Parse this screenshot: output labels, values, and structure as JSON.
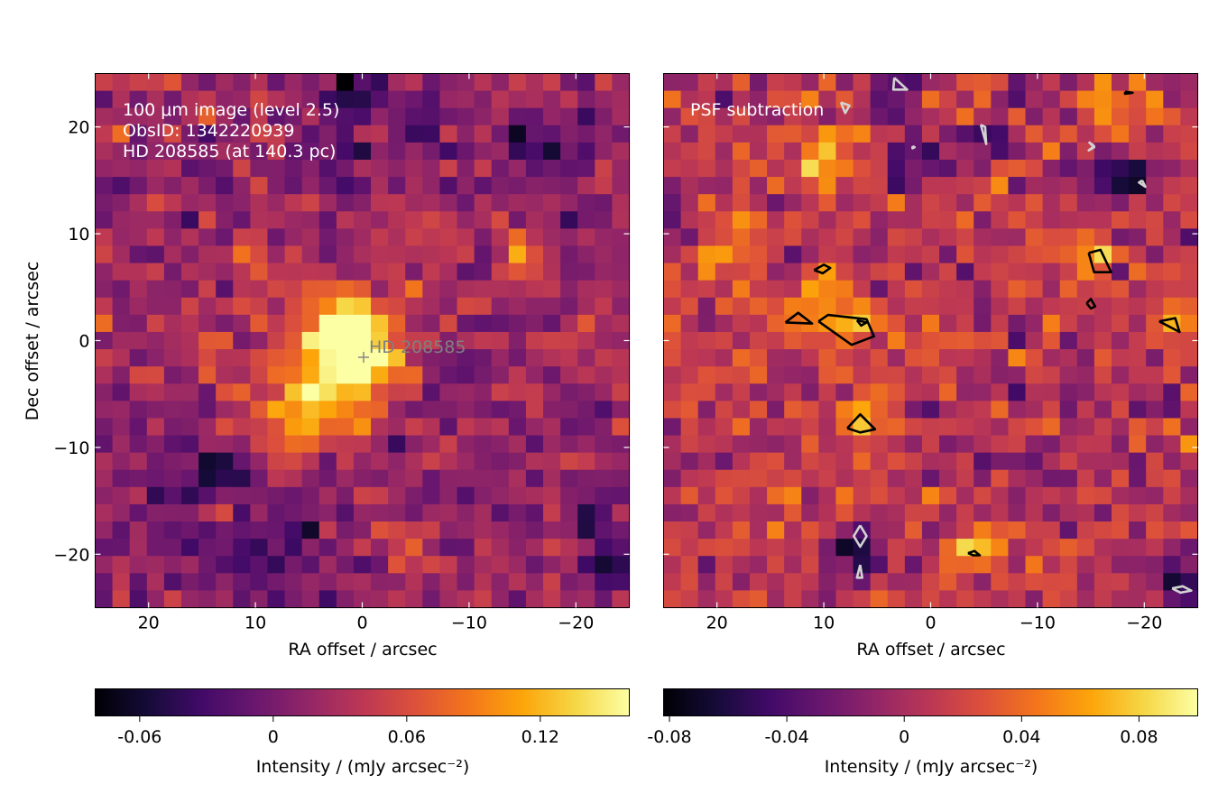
{
  "chart_data": [
    {
      "type": "heatmap",
      "title": "",
      "xlabel": "RA offset / arcsec",
      "ylabel": "Dec offset / arcsec",
      "xlim": [
        25,
        -25
      ],
      "ylim": [
        -25,
        25
      ],
      "xticks": [
        20,
        10,
        0,
        -10,
        -20
      ],
      "yticks": [
        20,
        10,
        0,
        -10,
        -20
      ],
      "xtick_labels": [
        "20",
        "10",
        "0",
        "−10",
        "−20"
      ],
      "ytick_labels": [
        "20",
        "10",
        "0",
        "−10",
        "−20"
      ],
      "annotation_lines": [
        "100 μm image (level 2.5)",
        "ObsID: 1342220939",
        "HD 208585 (at 140.3 pc)"
      ],
      "marker": {
        "label": "HD 208585",
        "x": 0,
        "y": -1.5
      },
      "colormap": "inferno",
      "grid": [
        31,
        26
      ],
      "colorbar": {
        "label": "Intensity / (mJy arcsec⁻²)",
        "range": [
          -0.08,
          0.16
        ],
        "ticks": [
          -0.06,
          0,
          0.06,
          0.12
        ],
        "tick_labels": [
          "-0.06",
          "0",
          "0.06",
          "0.12"
        ]
      },
      "blobs": [
        {
          "x": 0.5,
          "y": -1,
          "amp": 0.15,
          "sigma": 3.0
        },
        {
          "x": 3,
          "y": 2,
          "amp": 0.06,
          "sigma": 2.5
        },
        {
          "x": 3.5,
          "y": -5.5,
          "amp": 0.05,
          "sigma": 3.0
        },
        {
          "x": 7,
          "y": -5,
          "amp": 0.04,
          "sigma": 3.5
        },
        {
          "x": 6.5,
          "y": -8,
          "amp": 0.04,
          "sigma": 2.0
        },
        {
          "x": -15,
          "y": 8,
          "amp": 0.05,
          "sigma": 2.0
        },
        {
          "x": -5,
          "y": -19,
          "amp": 0.06,
          "sigma": 1.5
        },
        {
          "x": 10,
          "y": 6,
          "amp": 0.05,
          "sigma": 1.5
        },
        {
          "x": 1,
          "y": 23,
          "amp": -0.08,
          "sigma": 2.0
        },
        {
          "x": -5,
          "y": 20,
          "amp": -0.06,
          "sigma": 1.5
        },
        {
          "x": 2,
          "y": 17,
          "amp": -0.05,
          "sigma": 2.0
        },
        {
          "x": -16,
          "y": 18,
          "amp": -0.05,
          "sigma": 2.0
        },
        {
          "x": -19,
          "y": 15,
          "amp": -0.04,
          "sigma": 2.0
        },
        {
          "x": -22,
          "y": 21,
          "amp": -0.04,
          "sigma": 1.5
        },
        {
          "x": 6,
          "y": -18,
          "amp": -0.07,
          "sigma": 1.5
        },
        {
          "x": 13,
          "y": -12,
          "amp": -0.04,
          "sigma": 2.0
        },
        {
          "x": 10,
          "y": -21,
          "amp": -0.04,
          "sigma": 3.0
        },
        {
          "x": -23,
          "y": -22,
          "amp": -0.06,
          "sigma": 1.5
        },
        {
          "x": -21,
          "y": -17,
          "amp": -0.05,
          "sigma": 2.0
        },
        {
          "x": 24,
          "y": 13,
          "amp": -0.04,
          "sigma": 1.5
        },
        {
          "x": 18,
          "y": -16,
          "amp": -0.03,
          "sigma": 4.0
        }
      ],
      "base": 0.02,
      "noise": 0.02,
      "seed": 7
    },
    {
      "type": "heatmap",
      "title": "",
      "xlabel": "RA offset / arcsec",
      "ylabel": "",
      "xlim": [
        25,
        -25
      ],
      "ylim": [
        -25,
        25
      ],
      "xticks": [
        20,
        10,
        0,
        -10,
        -20
      ],
      "yticks": [
        20,
        10,
        0,
        -10,
        -20
      ],
      "xtick_labels": [
        "20",
        "10",
        "0",
        "−10",
        "−20"
      ],
      "ytick_labels": [],
      "annotation_lines": [
        "PSF subtraction"
      ],
      "colormap": "inferno",
      "grid": [
        31,
        26
      ],
      "colorbar": {
        "label": "Intensity / (mJy arcsec⁻²)",
        "range": [
          -0.082,
          0.1
        ],
        "ticks": [
          -0.08,
          -0.04,
          0,
          0.04,
          0.08
        ],
        "tick_labels": [
          "-0.08",
          "-0.04",
          "0",
          "0.04",
          "0.08"
        ]
      },
      "blobs": [
        {
          "x": 6.5,
          "y": 1.5,
          "amp": 0.05,
          "sigma": 2.0
        },
        {
          "x": 6.5,
          "y": -7.5,
          "amp": 0.05,
          "sigma": 1.5
        },
        {
          "x": -16,
          "y": 8,
          "amp": 0.05,
          "sigma": 1.5
        },
        {
          "x": -22.5,
          "y": 1.5,
          "amp": 0.05,
          "sigma": 1.5
        },
        {
          "x": 12,
          "y": 2,
          "amp": 0.04,
          "sigma": 2.0
        },
        {
          "x": 10,
          "y": 6,
          "amp": 0.03,
          "sigma": 1.5
        },
        {
          "x": -4,
          "y": -19.5,
          "amp": 0.06,
          "sigma": 1.5
        },
        {
          "x": 10,
          "y": 18,
          "amp": 0.04,
          "sigma": 2.0
        },
        {
          "x": 19,
          "y": 8,
          "amp": 0.04,
          "sigma": 2.0
        },
        {
          "x": -17,
          "y": 23,
          "amp": 0.04,
          "sigma": 2.0
        },
        {
          "x": 24,
          "y": 3,
          "amp": 0.03,
          "sigma": 2.0
        },
        {
          "x": 6.5,
          "y": -19.5,
          "amp": -0.08,
          "sigma": 1.5
        },
        {
          "x": 3,
          "y": 23,
          "amp": -0.06,
          "sigma": 1.5
        },
        {
          "x": 1.5,
          "y": 17,
          "amp": -0.05,
          "sigma": 2.0
        },
        {
          "x": -5,
          "y": 19,
          "amp": -0.05,
          "sigma": 1.5
        },
        {
          "x": -19,
          "y": 15,
          "amp": -0.05,
          "sigma": 1.5
        },
        {
          "x": -23,
          "y": -22.5,
          "amp": -0.07,
          "sigma": 1.5
        },
        {
          "x": -15,
          "y": 16,
          "amp": -0.04,
          "sigma": 2.0
        },
        {
          "x": 24,
          "y": 13,
          "amp": -0.04,
          "sigma": 1.5
        },
        {
          "x": -10,
          "y": -12,
          "amp": -0.03,
          "sigma": 3.0
        }
      ],
      "base": 0.008,
      "noise": 0.018,
      "seed": 23,
      "contours": [
        {
          "color": "black",
          "points": [
            [
              10.5,
              1.8
            ],
            [
              9.6,
              2.4
            ],
            [
              6.0,
              2.0
            ],
            [
              5.3,
              0.4
            ],
            [
              7.4,
              -0.4
            ],
            [
              10.5,
              1.8
            ]
          ]
        },
        {
          "color": "black",
          "points": [
            [
              6.9,
              1.9
            ],
            [
              6.0,
              1.7
            ],
            [
              6.5,
              1.4
            ],
            [
              6.9,
              1.9
            ]
          ]
        },
        {
          "color": "black",
          "points": [
            [
              13.6,
              1.7
            ],
            [
              12.4,
              2.6
            ],
            [
              11.1,
              1.6
            ],
            [
              13.6,
              1.7
            ]
          ]
        },
        {
          "color": "black",
          "points": [
            [
              10.9,
              6.6
            ],
            [
              10.0,
              7.1
            ],
            [
              9.4,
              6.8
            ],
            [
              10.1,
              6.3
            ],
            [
              10.9,
              6.6
            ]
          ]
        },
        {
          "color": "black",
          "points": [
            [
              7.8,
              -8.2
            ],
            [
              6.6,
              -6.9
            ],
            [
              5.2,
              -8.3
            ],
            [
              6.6,
              -8.6
            ],
            [
              7.8,
              -8.2
            ]
          ]
        },
        {
          "color": "black",
          "points": [
            [
              -14.8,
              8.2
            ],
            [
              -15.9,
              8.5
            ],
            [
              -16.9,
              6.4
            ],
            [
              -15.3,
              6.4
            ],
            [
              -14.8,
              8.2
            ]
          ]
        },
        {
          "color": "black",
          "points": [
            [
              -14.6,
              3.5
            ],
            [
              -15.0,
              3.9
            ],
            [
              -15.4,
              3.2
            ],
            [
              -15.0,
              3.0
            ],
            [
              -14.6,
              3.5
            ]
          ]
        },
        {
          "color": "black",
          "points": [
            [
              -21.4,
              1.8
            ],
            [
              -22.9,
              2.1
            ],
            [
              -23.3,
              0.8
            ],
            [
              -21.4,
              1.8
            ]
          ]
        },
        {
          "color": "black",
          "points": [
            [
              -3.5,
              -19.9
            ],
            [
              -4.1,
              -19.7
            ],
            [
              -4.6,
              -20.1
            ],
            [
              -4.0,
              -20.1
            ],
            [
              -3.5,
              -19.9
            ]
          ]
        },
        {
          "color": "black",
          "points": [
            [
              -18.2,
              23.3
            ],
            [
              -18.9,
              23.2
            ],
            [
              -18.2,
              23.1
            ],
            [
              -18.2,
              23.3
            ]
          ]
        },
        {
          "color": "#d2d2d2",
          "points": [
            [
              3.4,
              24.6
            ],
            [
              2.2,
              23.5
            ],
            [
              3.5,
              23.5
            ],
            [
              3.4,
              24.6
            ]
          ]
        },
        {
          "color": "#d2d2d2",
          "points": [
            [
              8.4,
              22.3
            ],
            [
              8.0,
              21.3
            ],
            [
              7.6,
              22.0
            ],
            [
              8.4,
              22.3
            ]
          ]
        },
        {
          "color": "#d2d2d2",
          "points": [
            [
              -4.7,
              20.2
            ],
            [
              -5.2,
              18.4
            ],
            [
              -5.1,
              20.0
            ],
            [
              -4.7,
              20.2
            ]
          ]
        },
        {
          "color": "#d2d2d2",
          "points": [
            [
              -14.8,
              18.6
            ],
            [
              -15.3,
              18.2
            ],
            [
              -14.8,
              17.8
            ],
            [
              -15.3,
              18.1
            ],
            [
              -14.8,
              18.6
            ]
          ]
        },
        {
          "color": "#d2d2d2",
          "points": [
            [
              -19.8,
              15.0
            ],
            [
              -20.1,
              14.4
            ],
            [
              -19.5,
              14.8
            ],
            [
              -19.8,
              15.0
            ]
          ]
        },
        {
          "color": "#d2d2d2",
          "points": [
            [
              1.7,
              18.2
            ],
            [
              1.5,
              18.1
            ],
            [
              1.7,
              18.0
            ],
            [
              1.7,
              18.2
            ]
          ]
        },
        {
          "color": "#d2d2d2",
          "points": [
            [
              6.6,
              -17.3
            ],
            [
              7.2,
              -18.3
            ],
            [
              6.6,
              -19.3
            ],
            [
              6.0,
              -18.3
            ],
            [
              6.6,
              -17.3
            ]
          ]
        },
        {
          "color": "#d2d2d2",
          "points": [
            [
              6.6,
              -21.0
            ],
            [
              6.9,
              -22.2
            ],
            [
              6.4,
              -22.2
            ],
            [
              6.6,
              -21.0
            ]
          ]
        },
        {
          "color": "#d2d2d2",
          "points": [
            [
              -22.6,
              -23.2
            ],
            [
              -23.6,
              -23.0
            ],
            [
              -24.4,
              -23.4
            ],
            [
              -23.4,
              -23.6
            ],
            [
              -22.6,
              -23.2
            ]
          ]
        }
      ]
    }
  ]
}
